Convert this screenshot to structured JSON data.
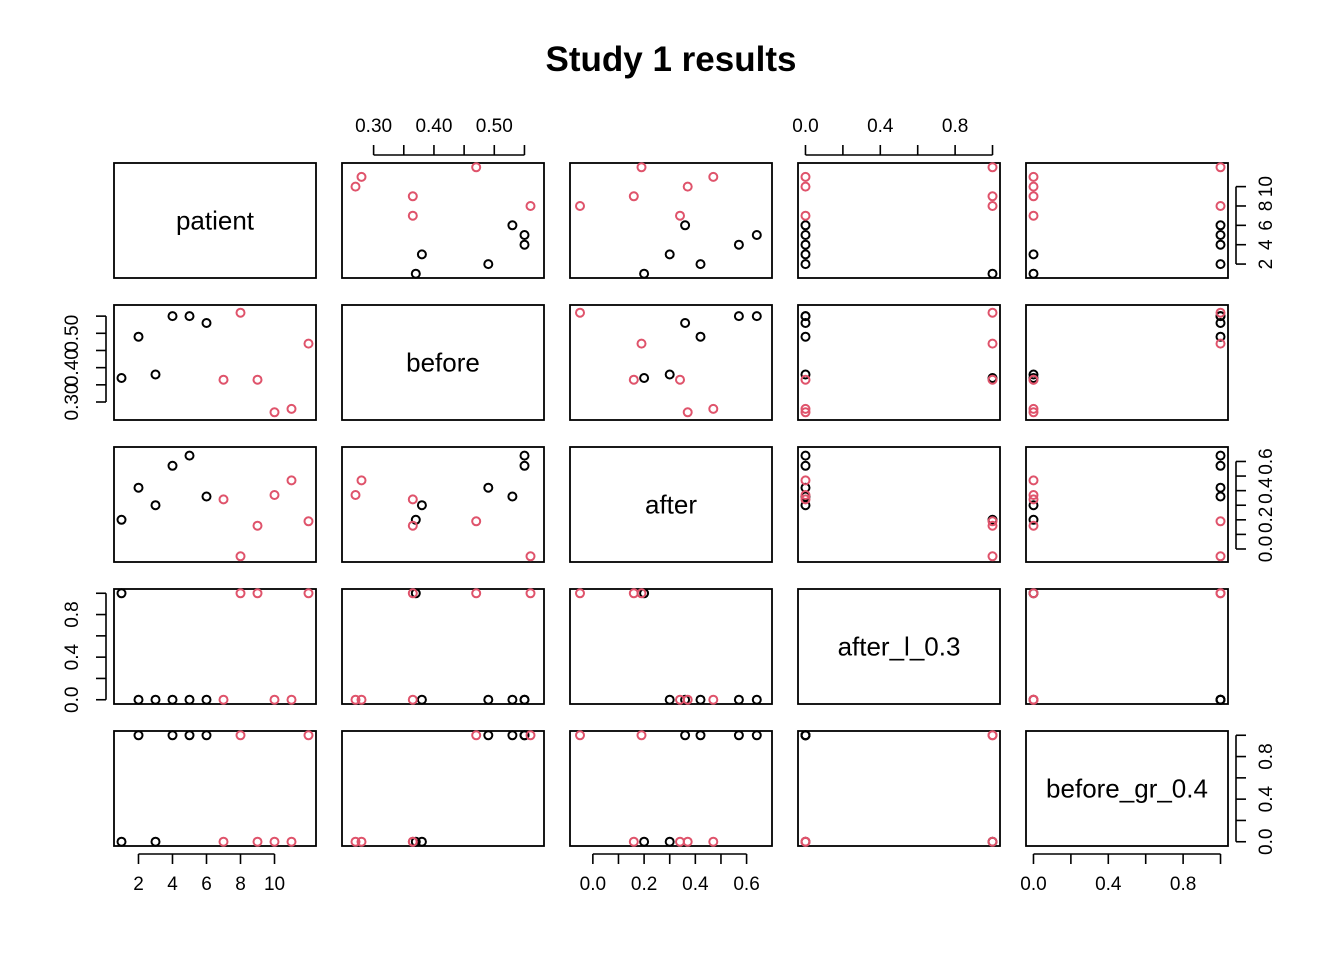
{
  "title": "Study 1 results",
  "colors": {
    "group_black": "#000000",
    "group_red": "#DF536B"
  },
  "chart_data": {
    "type": "scatter",
    "layout": "pairs-matrix",
    "title": "Study 1 results",
    "variables": [
      "patient",
      "before",
      "after",
      "after_l_0.3",
      "before_gr_0.4"
    ],
    "axes": {
      "patient": {
        "range": [
          1,
          12
        ],
        "ticks": [
          2,
          4,
          6,
          8,
          10
        ],
        "tick_labels": [
          "2",
          "4",
          "6",
          "8",
          "10"
        ]
      },
      "before": {
        "range": [
          0.26,
          0.57
        ],
        "ticks": [
          0.3,
          0.35,
          0.4,
          0.45,
          0.5,
          0.55
        ],
        "tick_labels": [
          "0.30",
          "",
          "0.40",
          "",
          "0.50",
          ""
        ]
      },
      "after": {
        "range": [
          -0.06,
          0.67
        ],
        "ticks": [
          0.0,
          0.1,
          0.2,
          0.3,
          0.4,
          0.5,
          0.6
        ],
        "tick_labels": [
          "0.0",
          "",
          "0.2",
          "",
          "0.4",
          "",
          "0.6"
        ]
      },
      "after_l_0.3": {
        "range": [
          0,
          1
        ],
        "ticks": [
          0.0,
          0.2,
          0.4,
          0.6,
          0.8,
          1.0
        ],
        "tick_labels": [
          "0.0",
          "",
          "0.4",
          "",
          "0.8",
          ""
        ]
      },
      "before_gr_0.4": {
        "range": [
          0,
          1
        ],
        "ticks": [
          0.0,
          0.2,
          0.4,
          0.6,
          0.8,
          1.0
        ],
        "tick_labels": [
          "0.0",
          "",
          "0.4",
          "",
          "0.8",
          ""
        ]
      }
    },
    "points": [
      {
        "patient": 1,
        "before": 0.37,
        "after": 0.2,
        "after_l_0.3": 1,
        "before_gr_0.4": 0,
        "color": "black"
      },
      {
        "patient": 2,
        "before": 0.49,
        "after": 0.42,
        "after_l_0.3": 0,
        "before_gr_0.4": 1,
        "color": "black"
      },
      {
        "patient": 3,
        "before": 0.38,
        "after": 0.3,
        "after_l_0.3": 0,
        "before_gr_0.4": 0,
        "color": "black"
      },
      {
        "patient": 4,
        "before": 0.55,
        "after": 0.57,
        "after_l_0.3": 0,
        "before_gr_0.4": 1,
        "color": "black"
      },
      {
        "patient": 5,
        "before": 0.55,
        "after": 0.64,
        "after_l_0.3": 0,
        "before_gr_0.4": 1,
        "color": "black"
      },
      {
        "patient": 6,
        "before": 0.53,
        "after": 0.36,
        "after_l_0.3": 0,
        "before_gr_0.4": 1,
        "color": "black"
      },
      {
        "patient": 7,
        "before": 0.365,
        "after": 0.34,
        "after_l_0.3": 0,
        "before_gr_0.4": 0,
        "color": "red"
      },
      {
        "patient": 8,
        "before": 0.56,
        "after": -0.05,
        "after_l_0.3": 1,
        "before_gr_0.4": 1,
        "color": "red"
      },
      {
        "patient": 9,
        "before": 0.365,
        "after": 0.16,
        "after_l_0.3": 1,
        "before_gr_0.4": 0,
        "color": "red"
      },
      {
        "patient": 10,
        "before": 0.27,
        "after": 0.37,
        "after_l_0.3": 0,
        "before_gr_0.4": 0,
        "color": "red"
      },
      {
        "patient": 11,
        "before": 0.28,
        "after": 0.47,
        "after_l_0.3": 0,
        "before_gr_0.4": 0,
        "color": "red"
      },
      {
        "patient": 12,
        "before": 0.47,
        "after": 0.19,
        "after_l_0.3": 1,
        "before_gr_0.4": 1,
        "color": "red"
      }
    ]
  }
}
